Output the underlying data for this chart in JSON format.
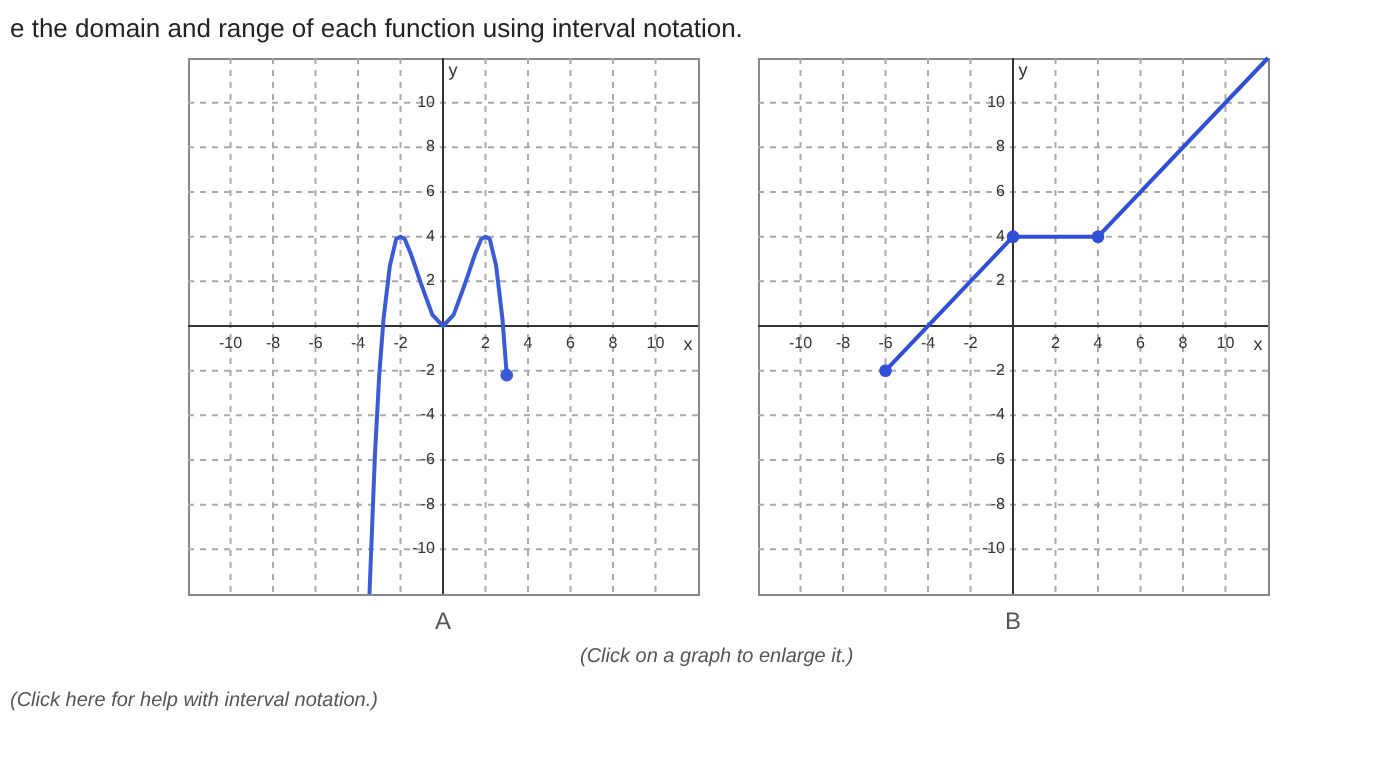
{
  "chart_data": [
    {
      "type": "line",
      "title": "A",
      "xlabel": "x",
      "ylabel": "y",
      "annotations": [
        "e the domain and range of each function using interval notation.",
        "(Click here for help with interval notation.)"
      ],
      "xlim": [
        -12,
        12
      ],
      "ylim": [
        -12,
        12
      ],
      "xticks": [
        -10,
        -8,
        -6,
        -4,
        -2,
        2,
        4,
        6,
        8,
        10
      ],
      "yticks": [
        -10,
        -8,
        -6,
        -4,
        -2,
        2,
        4,
        6,
        8,
        10
      ],
      "grid": true,
      "series": [
        {
          "type": "line",
          "color": "#3b5bd6",
          "x": [
            -3.46,
            -3.2,
            -3.0,
            -2.8,
            -2.5,
            -2.2,
            -2.0,
            -1.8,
            -1.5,
            -1.0,
            -0.5,
            0,
            0.5,
            1.0,
            1.5,
            1.8,
            2.0,
            2.2,
            2.5,
            2.8,
            3.0
          ],
          "values": [
            -12,
            -5.7,
            -2.2,
            0.3,
            2.7,
            3.9,
            4,
            3.9,
            3.2,
            1.8,
            0.5,
            0,
            0.5,
            1.8,
            3.2,
            3.9,
            4,
            3.9,
            2.7,
            0.3,
            -2.2
          ],
          "marker": "none"
        },
        {
          "type": "scatter",
          "color": "#3b5bd6",
          "x": [
            3
          ],
          "values": [
            -2.2
          ],
          "marker": "circle"
        }
      ]
    },
    {
      "type": "line",
      "title": "B",
      "xlabel": "x",
      "ylabel": "y",
      "annotations": [
        "(Click on a graph to enlarge it.)"
      ],
      "xlim": [
        -12,
        12
      ],
      "ylim": [
        -12,
        12
      ],
      "xticks": [
        -10,
        -8,
        -6,
        -4,
        -2,
        2,
        4,
        6,
        8,
        10
      ],
      "yticks": [
        -10,
        -8,
        -6,
        -4,
        -2,
        2,
        4,
        6,
        8,
        10
      ],
      "grid": true,
      "series": [
        {
          "type": "line",
          "color": "#2f4fd8",
          "x": [
            -6,
            0,
            4,
            12
          ],
          "values": [
            -2,
            4,
            4,
            12
          ],
          "marker": "none"
        },
        {
          "type": "scatter",
          "color": "#2f4fd8",
          "x": [
            -6,
            0,
            4
          ],
          "values": [
            -2,
            4,
            4
          ],
          "marker": "circle"
        }
      ]
    }
  ]
}
